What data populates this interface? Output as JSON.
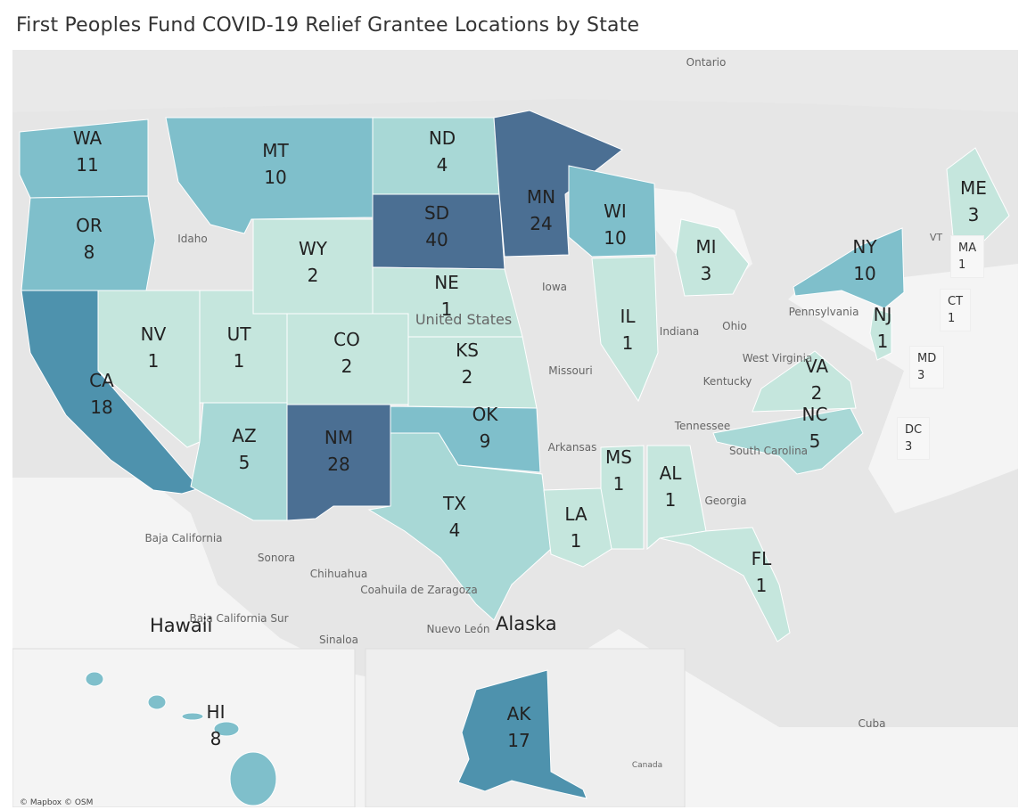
{
  "title": "First Peoples Fund  COVID-19 Relief Grantee Locations by State",
  "credit": "© Mapbox © OSM",
  "legend_colors": {
    "lowest": "#c5e6dd",
    "low": "#a8d8d6",
    "mid": "#7fbfcb",
    "high": "#4e92ad",
    "highest": "#4b6f93"
  },
  "insets": {
    "hawaii": "Hawaii",
    "alaska": "Alaska"
  },
  "base_map_labels": [
    {
      "id": "ontario",
      "text": "Ontario"
    },
    {
      "id": "idaho",
      "text": "Idaho"
    },
    {
      "id": "iowa",
      "text": "Iowa"
    },
    {
      "id": "missouri",
      "text": "Missouri"
    },
    {
      "id": "indiana",
      "text": "Indiana"
    },
    {
      "id": "ohio",
      "text": "Ohio"
    },
    {
      "id": "pennsylvania",
      "text": "Pennsylvania"
    },
    {
      "id": "kentucky",
      "text": "Kentucky"
    },
    {
      "id": "tennessee",
      "text": "Tennessee"
    },
    {
      "id": "arkansas",
      "text": "Arkansas"
    },
    {
      "id": "georgia",
      "text": "Georgia"
    },
    {
      "id": "west-virginia",
      "text": "West Virginia"
    },
    {
      "id": "south-carolina",
      "text": "South Carolina"
    },
    {
      "id": "vt",
      "text": "VT"
    },
    {
      "id": "baja",
      "text": "Baja California"
    },
    {
      "id": "sonora",
      "text": "Sonora"
    },
    {
      "id": "chihuahua",
      "text": "Chihuahua"
    },
    {
      "id": "coahuila",
      "text": "Coahuila de Zaragoza"
    },
    {
      "id": "bcs",
      "text": "Baja California Sur"
    },
    {
      "id": "sinaloa",
      "text": "Sinaloa"
    },
    {
      "id": "nuevo-leon",
      "text": "Nuevo León"
    },
    {
      "id": "cuba",
      "text": "Cuba"
    },
    {
      "id": "canada",
      "text": "Canada"
    },
    {
      "id": "united-states",
      "text": "United States"
    }
  ],
  "states": [
    {
      "code": "WA",
      "count": 11,
      "level": "mid"
    },
    {
      "code": "OR",
      "count": 8,
      "level": "mid"
    },
    {
      "code": "CA",
      "count": 18,
      "level": "high"
    },
    {
      "code": "MT",
      "count": 10,
      "level": "mid"
    },
    {
      "code": "ND",
      "count": 4,
      "level": "low"
    },
    {
      "code": "SD",
      "count": 40,
      "level": "highest"
    },
    {
      "code": "MN",
      "count": 24,
      "level": "highest"
    },
    {
      "code": "WY",
      "count": 2,
      "level": "lowest"
    },
    {
      "code": "NE",
      "count": 1,
      "level": "lowest"
    },
    {
      "code": "NV",
      "count": 1,
      "level": "lowest"
    },
    {
      "code": "UT",
      "count": 1,
      "level": "lowest"
    },
    {
      "code": "CO",
      "count": 2,
      "level": "lowest"
    },
    {
      "code": "KS",
      "count": 2,
      "level": "lowest"
    },
    {
      "code": "AZ",
      "count": 5,
      "level": "low"
    },
    {
      "code": "NM",
      "count": 28,
      "level": "highest"
    },
    {
      "code": "OK",
      "count": 9,
      "level": "mid"
    },
    {
      "code": "TX",
      "count": 4,
      "level": "low"
    },
    {
      "code": "WI",
      "count": 10,
      "level": "mid"
    },
    {
      "code": "MI",
      "count": 3,
      "level": "lowest"
    },
    {
      "code": "IL",
      "count": 1,
      "level": "lowest"
    },
    {
      "code": "MS",
      "count": 1,
      "level": "lowest"
    },
    {
      "code": "AL",
      "count": 1,
      "level": "lowest"
    },
    {
      "code": "LA",
      "count": 1,
      "level": "lowest"
    },
    {
      "code": "FL",
      "count": 1,
      "level": "lowest"
    },
    {
      "code": "NC",
      "count": 5,
      "level": "low"
    },
    {
      "code": "VA",
      "count": 2,
      "level": "lowest"
    },
    {
      "code": "NY",
      "count": 10,
      "level": "mid"
    },
    {
      "code": "NJ",
      "count": 1,
      "level": "lowest"
    },
    {
      "code": "ME",
      "count": 3,
      "level": "lowest"
    },
    {
      "code": "HI",
      "count": 8,
      "level": "mid"
    },
    {
      "code": "AK",
      "count": 17,
      "level": "high"
    }
  ],
  "callouts": [
    {
      "code": "MA",
      "count": 1
    },
    {
      "code": "CT",
      "count": 1
    },
    {
      "code": "MD",
      "count": 3
    },
    {
      "code": "DC",
      "count": 3
    }
  ]
}
